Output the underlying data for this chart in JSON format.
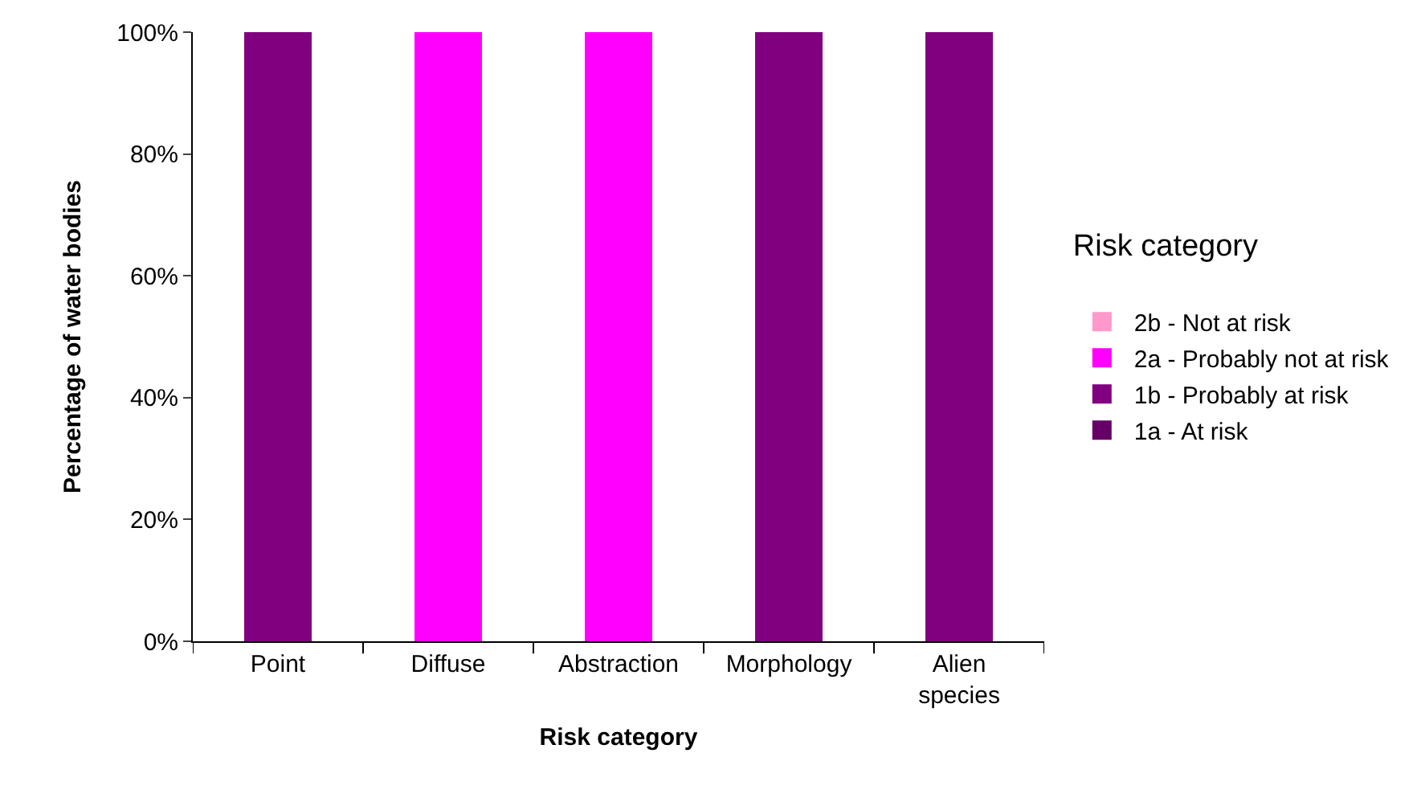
{
  "chart_data": {
    "type": "bar",
    "stacked": true,
    "xlabel": "Risk category",
    "ylabel": "Percentage of water bodies",
    "legend_title": "Risk category",
    "legend": "right",
    "grid": false,
    "categories": [
      "Point",
      "Diffuse",
      "Abstraction",
      "Morphology",
      "Alien species"
    ],
    "series": [
      {
        "name": "1a - At risk",
        "color": "#660066",
        "values": [
          0,
          0,
          0,
          0,
          0
        ]
      },
      {
        "name": "1b - Probably at risk",
        "color": "#800080",
        "values": [
          100,
          0,
          0,
          100,
          100
        ]
      },
      {
        "name": "2a - Probably not at risk",
        "color": "#ff00ff",
        "values": [
          0,
          100,
          100,
          0,
          0
        ]
      },
      {
        "name": "2b - Not at risk",
        "color": "#ff99cc",
        "values": [
          0,
          0,
          0,
          0,
          0
        ]
      }
    ],
    "ylim": [
      0,
      100
    ],
    "yticks": [
      {
        "value": 0,
        "label": "0%"
      },
      {
        "value": 20,
        "label": "20%"
      },
      {
        "value": 40,
        "label": "40%"
      },
      {
        "value": 60,
        "label": "60%"
      },
      {
        "value": 80,
        "label": "80%"
      },
      {
        "value": 100,
        "label": "100%"
      }
    ]
  }
}
